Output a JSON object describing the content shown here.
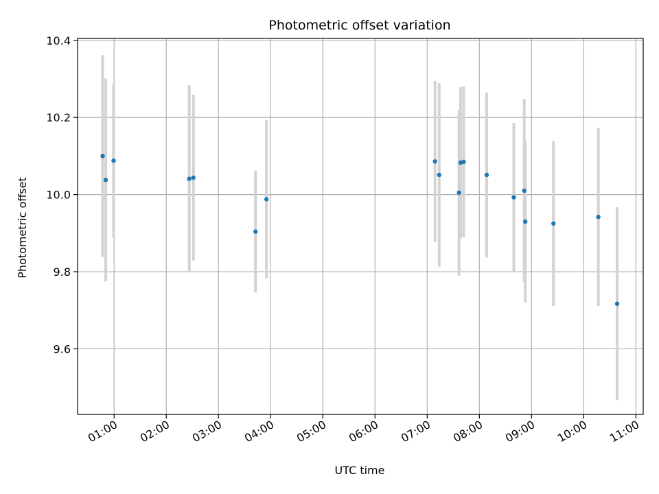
{
  "chart_data": {
    "type": "scatter",
    "title": "Photometric offset variation",
    "xlabel": "UTC time",
    "ylabel": "Photometric offset",
    "x_unit": "hours UTC",
    "xlim": [
      0.3,
      11.14
    ],
    "ylim": [
      9.43,
      10.405
    ],
    "xticks": [
      {
        "value": 1,
        "label": "01:00"
      },
      {
        "value": 2,
        "label": "02:00"
      },
      {
        "value": 3,
        "label": "03:00"
      },
      {
        "value": 4,
        "label": "04:00"
      },
      {
        "value": 5,
        "label": "05:00"
      },
      {
        "value": 6,
        "label": "06:00"
      },
      {
        "value": 7,
        "label": "07:00"
      },
      {
        "value": 8,
        "label": "08:00"
      },
      {
        "value": 9,
        "label": "09:00"
      },
      {
        "value": 10,
        "label": "10:00"
      },
      {
        "value": 11,
        "label": "11:00"
      }
    ],
    "yticks": [
      {
        "value": 9.6,
        "label": "9.6"
      },
      {
        "value": 9.8,
        "label": "9.8"
      },
      {
        "value": 10.0,
        "label": "10.0"
      },
      {
        "value": 10.2,
        "label": "10.2"
      },
      {
        "value": 10.4,
        "label": "10.4"
      }
    ],
    "grid": true,
    "marker_color": "#1f77b4",
    "errorbar_color": "#d3d3d3",
    "points": [
      {
        "x": 0.78,
        "y": 10.1,
        "err": 0.262
      },
      {
        "x": 0.84,
        "y": 10.038,
        "err": 0.263
      },
      {
        "x": 0.99,
        "y": 10.088,
        "err": 0.2
      },
      {
        "x": 2.44,
        "y": 10.041,
        "err": 0.243
      },
      {
        "x": 2.52,
        "y": 10.044,
        "err": 0.215
      },
      {
        "x": 3.71,
        "y": 9.904,
        "err": 0.158
      },
      {
        "x": 3.92,
        "y": 9.988,
        "err": 0.205
      },
      {
        "x": 7.15,
        "y": 10.086,
        "err": 0.209
      },
      {
        "x": 7.23,
        "y": 10.051,
        "err": 0.238
      },
      {
        "x": 7.61,
        "y": 10.005,
        "err": 0.215
      },
      {
        "x": 7.64,
        "y": 10.083,
        "err": 0.196
      },
      {
        "x": 7.7,
        "y": 10.085,
        "err": 0.195
      },
      {
        "x": 8.14,
        "y": 10.051,
        "err": 0.214
      },
      {
        "x": 8.66,
        "y": 9.993,
        "err": 0.193
      },
      {
        "x": 8.86,
        "y": 10.01,
        "err": 0.238
      },
      {
        "x": 8.88,
        "y": 9.93,
        "err": 0.21
      },
      {
        "x": 9.42,
        "y": 9.925,
        "err": 0.214
      },
      {
        "x": 10.28,
        "y": 9.942,
        "err": 0.231
      },
      {
        "x": 10.64,
        "y": 9.717,
        "err": 0.25
      }
    ]
  }
}
